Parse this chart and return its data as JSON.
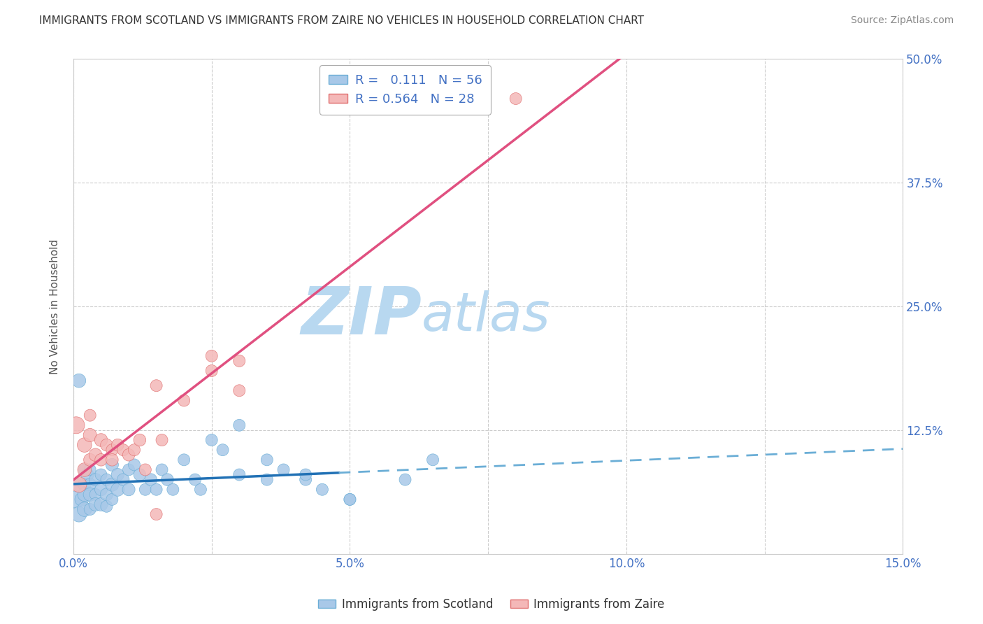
{
  "title": "IMMIGRANTS FROM SCOTLAND VS IMMIGRANTS FROM ZAIRE NO VEHICLES IN HOUSEHOLD CORRELATION CHART",
  "source": "Source: ZipAtlas.com",
  "ylabel": "No Vehicles in Household",
  "x_ticks": [
    0.0,
    0.025,
    0.05,
    0.075,
    0.1,
    0.125,
    0.15
  ],
  "x_tick_labels": [
    "0.0%",
    "",
    "5.0%",
    "",
    "10.0%",
    "",
    "15.0%"
  ],
  "y_ticks": [
    0.0,
    0.125,
    0.25,
    0.375,
    0.5
  ],
  "y_tick_labels": [
    "",
    "12.5%",
    "25.0%",
    "37.5%",
    "50.0%"
  ],
  "xlim": [
    0.0,
    0.15
  ],
  "ylim": [
    0.0,
    0.5
  ],
  "scotland_color": "#a8c8e8",
  "scotland_edge": "#6baed6",
  "zaire_color": "#f4b8b8",
  "zaire_edge": "#e07070",
  "scotland_R": 0.111,
  "scotland_N": 56,
  "zaire_R": 0.564,
  "zaire_N": 28,
  "scotland_x": [
    0.0005,
    0.001,
    0.001,
    0.001,
    0.0015,
    0.002,
    0.002,
    0.002,
    0.002,
    0.0025,
    0.003,
    0.003,
    0.003,
    0.003,
    0.004,
    0.004,
    0.004,
    0.005,
    0.005,
    0.005,
    0.006,
    0.006,
    0.006,
    0.007,
    0.007,
    0.007,
    0.008,
    0.008,
    0.009,
    0.01,
    0.01,
    0.011,
    0.012,
    0.013,
    0.014,
    0.015,
    0.016,
    0.017,
    0.018,
    0.02,
    0.022,
    0.023,
    0.025,
    0.027,
    0.03,
    0.035,
    0.038,
    0.042,
    0.045,
    0.05,
    0.03,
    0.035,
    0.042,
    0.05,
    0.06,
    0.065
  ],
  "scotland_y": [
    0.055,
    0.175,
    0.07,
    0.04,
    0.055,
    0.085,
    0.07,
    0.06,
    0.045,
    0.08,
    0.085,
    0.07,
    0.06,
    0.045,
    0.075,
    0.06,
    0.05,
    0.08,
    0.065,
    0.05,
    0.075,
    0.06,
    0.048,
    0.09,
    0.07,
    0.055,
    0.08,
    0.065,
    0.075,
    0.085,
    0.065,
    0.09,
    0.08,
    0.065,
    0.075,
    0.065,
    0.085,
    0.075,
    0.065,
    0.095,
    0.075,
    0.065,
    0.115,
    0.105,
    0.13,
    0.095,
    0.085,
    0.075,
    0.065,
    0.055,
    0.08,
    0.075,
    0.08,
    0.055,
    0.075,
    0.095
  ],
  "scotland_size": [
    300,
    200,
    180,
    250,
    200,
    150,
    180,
    200,
    220,
    180,
    150,
    170,
    190,
    150,
    170,
    150,
    190,
    150,
    170,
    190,
    150,
    170,
    150,
    170,
    190,
    150,
    170,
    190,
    160,
    150,
    170,
    150,
    160,
    150,
    160,
    150,
    150,
    160,
    150,
    150,
    150,
    150,
    150,
    150,
    150,
    150,
    150,
    150,
    150,
    150,
    150,
    150,
    150,
    150,
    150,
    150
  ],
  "zaire_x": [
    0.0005,
    0.001,
    0.002,
    0.002,
    0.003,
    0.003,
    0.004,
    0.005,
    0.005,
    0.006,
    0.007,
    0.007,
    0.008,
    0.009,
    0.01,
    0.011,
    0.012,
    0.013,
    0.015,
    0.016,
    0.02,
    0.025,
    0.03,
    0.03,
    0.08,
    0.025,
    0.015,
    0.003
  ],
  "zaire_y": [
    0.13,
    0.07,
    0.11,
    0.085,
    0.12,
    0.095,
    0.1,
    0.095,
    0.115,
    0.11,
    0.105,
    0.095,
    0.11,
    0.105,
    0.1,
    0.105,
    0.115,
    0.085,
    0.17,
    0.115,
    0.155,
    0.185,
    0.195,
    0.165,
    0.46,
    0.2,
    0.04,
    0.14
  ],
  "zaire_size": [
    300,
    250,
    220,
    200,
    190,
    170,
    180,
    160,
    180,
    160,
    150,
    160,
    160,
    150,
    160,
    150,
    160,
    150,
    150,
    150,
    150,
    150,
    150,
    150,
    150,
    150,
    150,
    150
  ],
  "scotland_line_color": "#2171b5",
  "scotland_dash_color": "#6baed6",
  "zaire_line_color": "#e05080",
  "watermark_zip": "ZIP",
  "watermark_atlas": "atlas",
  "watermark_color": "#cce0f0",
  "background_color": "#ffffff",
  "grid_color": "#cccccc",
  "tick_color": "#4472c4",
  "title_color": "#333333",
  "source_color": "#888888"
}
